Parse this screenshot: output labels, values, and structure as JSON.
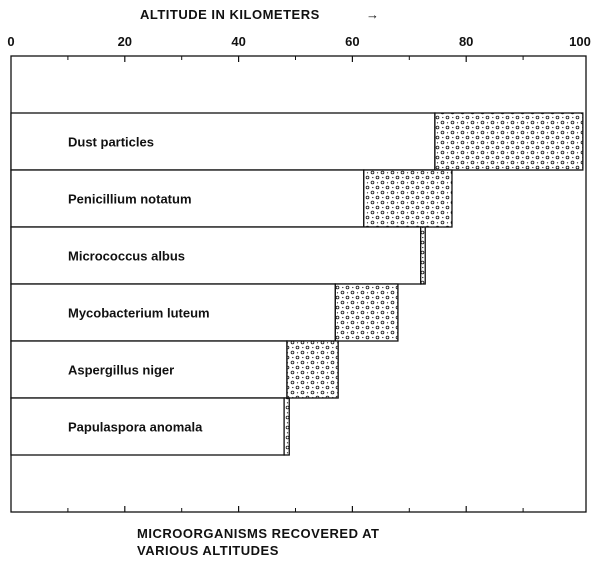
{
  "chart_data": {
    "type": "bar",
    "orientation": "horizontal",
    "stacked": true,
    "xlabel": "ALTITUDE IN KILOMETERS",
    "xlabel_arrow": "→",
    "xlim": [
      0,
      100
    ],
    "xticks": [
      0,
      20,
      40,
      60,
      80,
      100
    ],
    "caption_lines": [
      "MICROORGANISMS RECOVERED AT",
      "VARIOUS ALTITUDES"
    ],
    "categories": [
      "Dust particles",
      "Penicillium notatum",
      "Micrococcus albus",
      "Mycobacterium luteum",
      "Aspergillus niger",
      "Papulaspora anomala"
    ],
    "series": [
      {
        "pattern": "plain",
        "values": [
          74.5,
          62,
          72,
          57,
          48.5,
          48
        ]
      },
      {
        "pattern": "dotted",
        "values": [
          26,
          15.5,
          0.8,
          11,
          9,
          0.9
        ]
      }
    ],
    "colors": {
      "ink": "#111111",
      "background": "#ffffff"
    }
  }
}
